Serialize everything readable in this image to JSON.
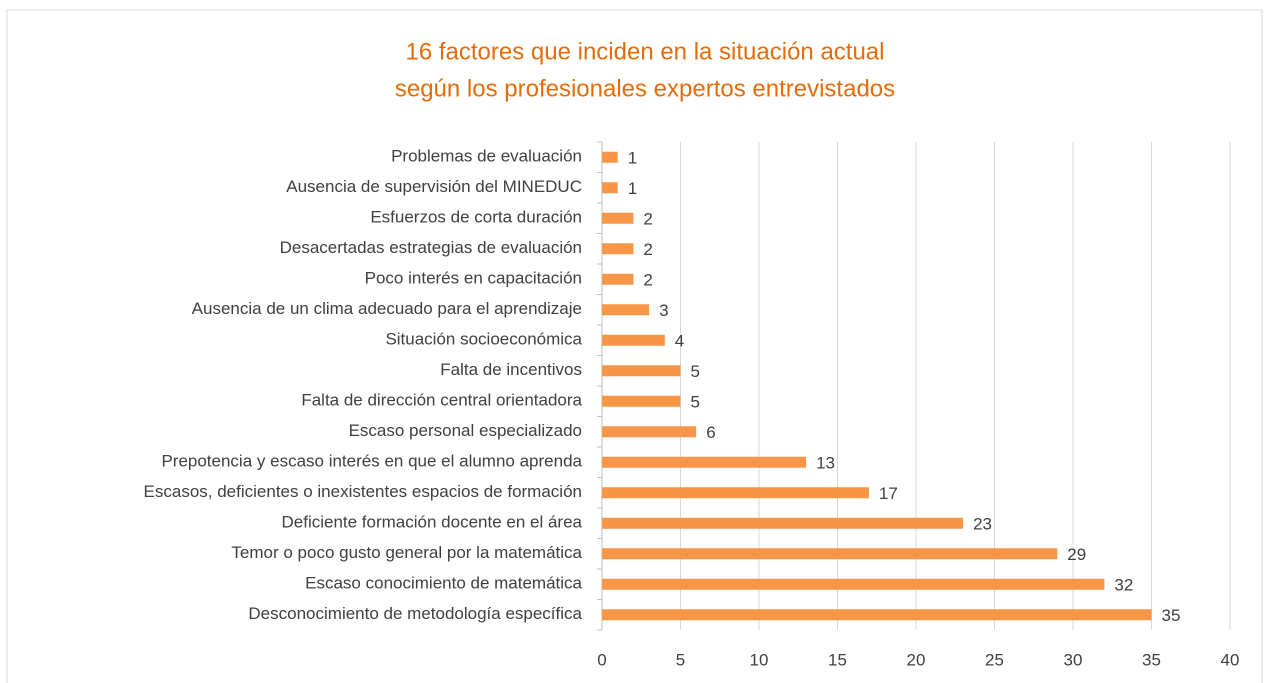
{
  "chart_data": {
    "type": "barh",
    "title": [
      "16 factores que inciden en la situación actual",
      "según los profesionales expertos entrevistados"
    ],
    "categories": [
      "Problemas de evaluación",
      "Ausencia de supervisión del MINEDUC",
      "Esfuerzos de corta duración",
      "Desacertadas estrategias de evaluación",
      "Poco interés en capacitación",
      "Ausencia de un clima adecuado para el aprendizaje",
      "Situación socioeconómica",
      "Falta de incentivos",
      "Falta de dirección central orientadora",
      "Escaso personal especializado",
      "Prepotencia y escaso interés en que el alumno aprenda",
      "Escasos, deficientes o inexistentes espacios de formación",
      "Deficiente formación docente en el área",
      "Temor o poco gusto general por la matemática",
      "Escaso conocimiento de matemática",
      "Desconocimiento de metodología específica"
    ],
    "values": [
      1,
      1,
      2,
      2,
      2,
      3,
      4,
      5,
      5,
      6,
      13,
      17,
      23,
      29,
      32,
      35
    ],
    "color": "#f79646",
    "xlim": [
      0,
      40
    ],
    "xticks": [
      0,
      5,
      10,
      15,
      20,
      25,
      30,
      35,
      40
    ],
    "grid": true
  }
}
